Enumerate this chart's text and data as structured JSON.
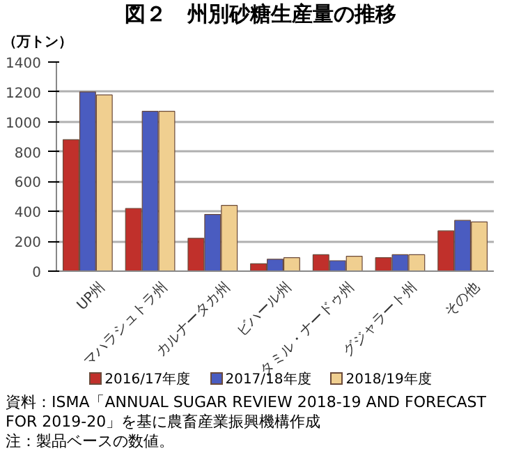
{
  "chart_data": {
    "type": "bar",
    "title": "図２　州別砂糖生産量の推移",
    "ylabel": "（万トン）",
    "categories": [
      "UP州",
      "マハラシュトラ州",
      "カルナータカ州",
      "ビハール州",
      "タミル・ナードゥ州",
      "グジャラート州",
      "その他"
    ],
    "series": [
      {
        "name": "2016/17年度",
        "color": "#c0302b",
        "values": [
          880,
          420,
          220,
          50,
          110,
          90,
          270
        ]
      },
      {
        "name": "2017/18年度",
        "color": "#4a5cc0",
        "values": [
          1200,
          1070,
          380,
          80,
          70,
          110,
          340
        ]
      },
      {
        "name": "2018/19年度",
        "color": "#f0cf90",
        "values": [
          1180,
          1070,
          440,
          90,
          100,
          110,
          330
        ]
      }
    ],
    "ylim": [
      0,
      1400
    ],
    "yticks": [
      0,
      200,
      400,
      600,
      800,
      1000,
      1200,
      1400
    ],
    "grid": "y",
    "legend": "bottom",
    "annotations": [
      "資料：ISMA「ANNUAL SUGAR REVIEW 2018-19 AND FORECAST FOR 2019-20」を基に農畜産業振興機構作成",
      "注：製品ベースの数値。"
    ]
  }
}
